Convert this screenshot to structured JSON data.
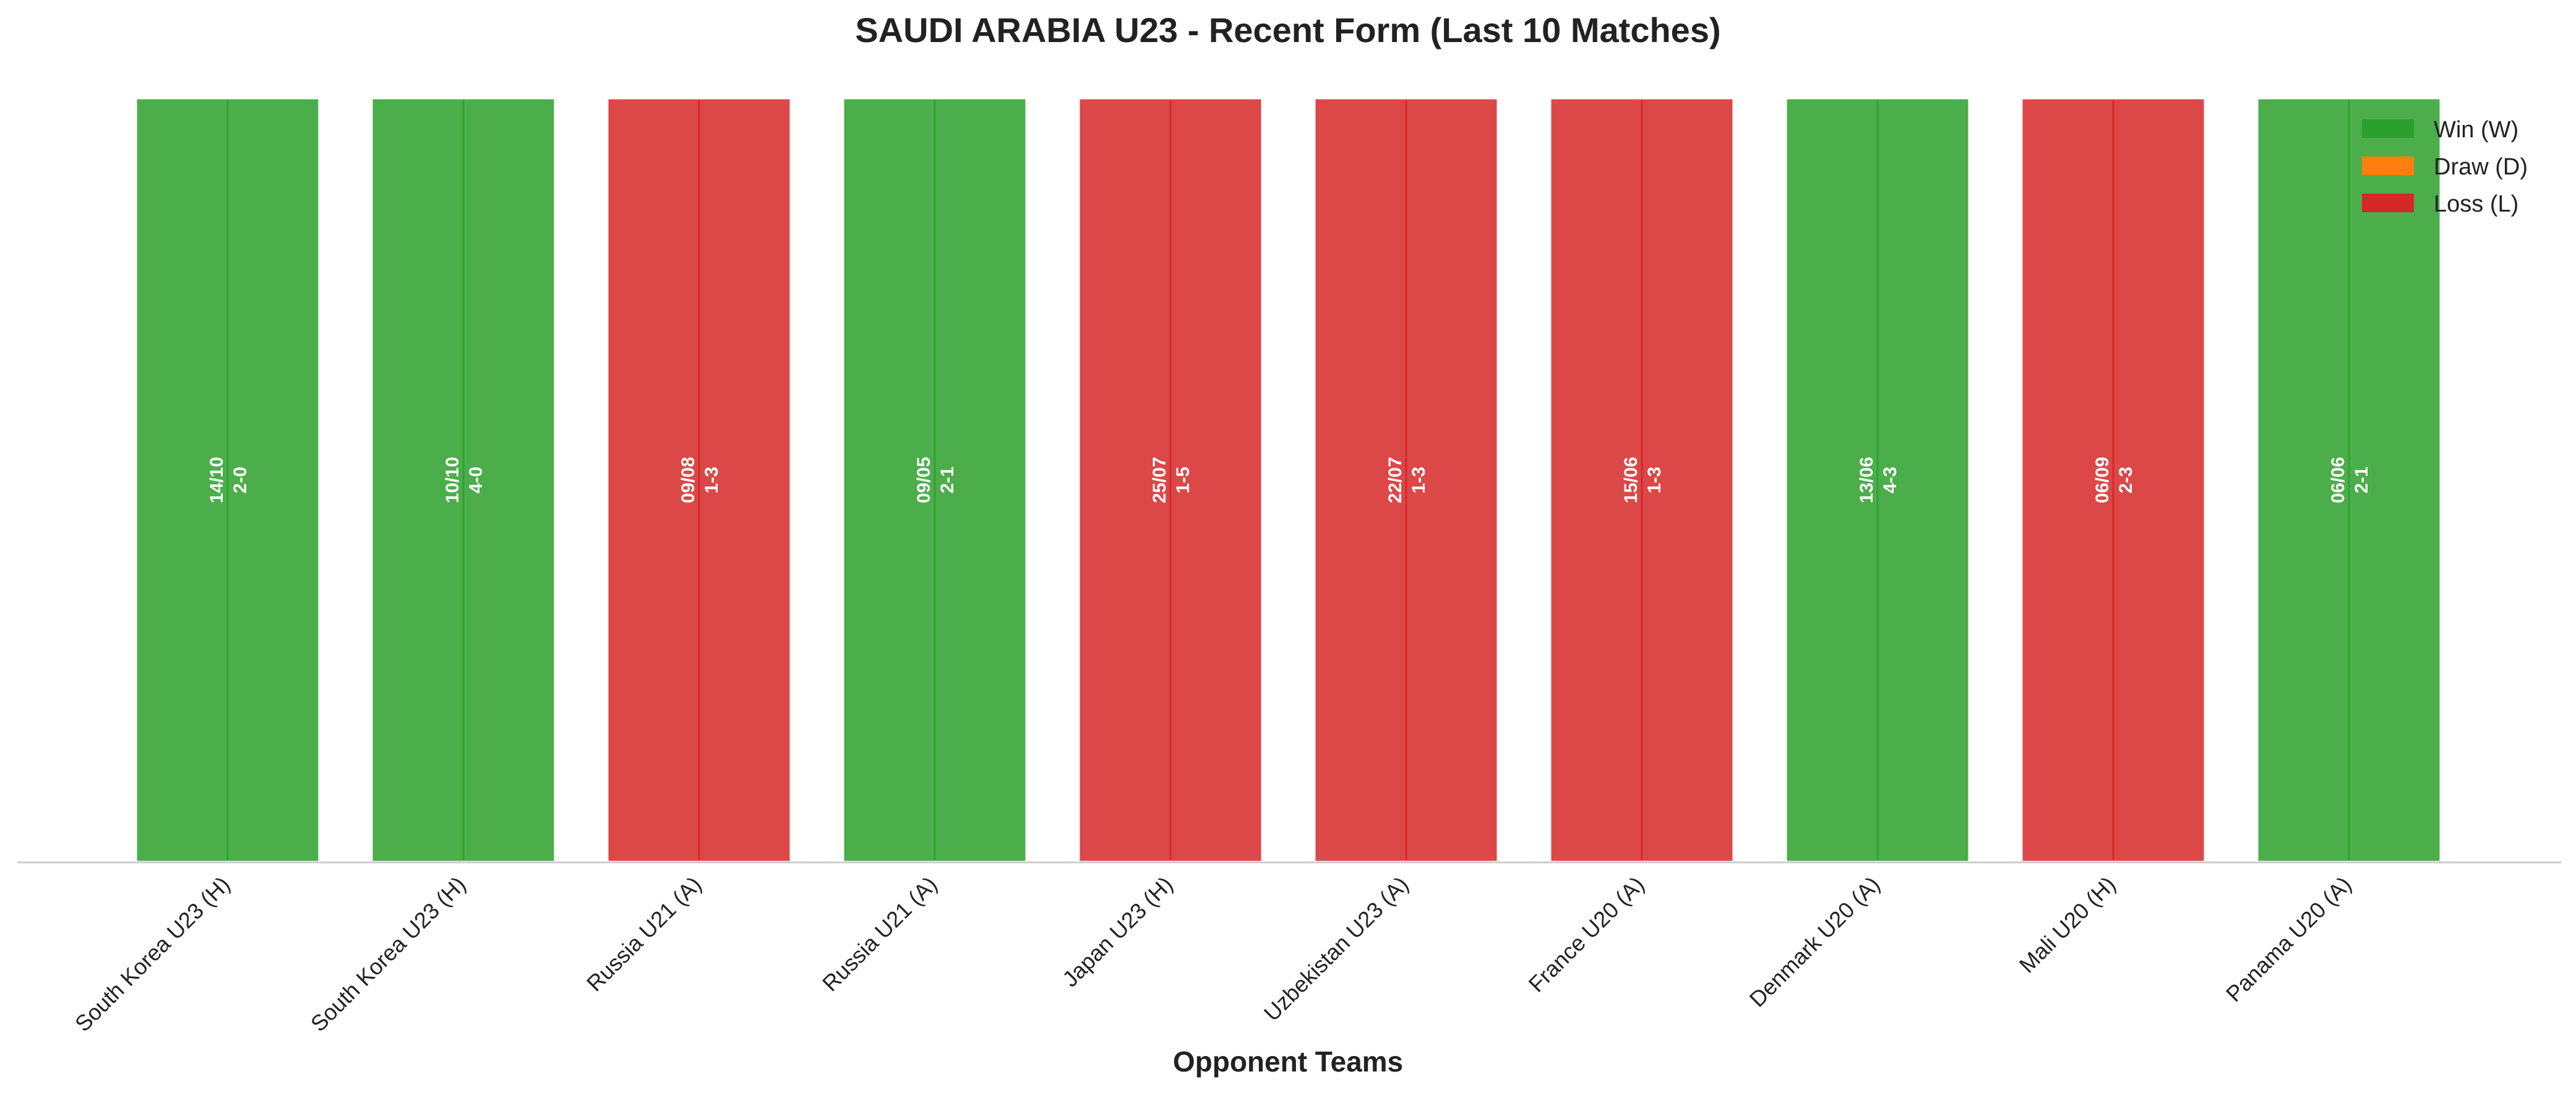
{
  "chart_data": {
    "type": "bar",
    "title": "SAUDI ARABIA U23 - Recent Form (Last 10 Matches)",
    "xlabel": "Opponent Teams",
    "ylabel": "",
    "ylim": [
      0,
      1
    ],
    "grid": false,
    "legend_position": "top-right",
    "legend": [
      {
        "key": "W",
        "label": "Win (W)",
        "color": "#2ca02c"
      },
      {
        "key": "D",
        "label": "Draw (D)",
        "color": "#ff7f0e"
      },
      {
        "key": "L",
        "label": "Loss (L)",
        "color": "#d62728"
      }
    ],
    "categories": [
      "South Korea U23 (H)",
      "South Korea U23 (H)",
      "Russia U21 (A)",
      "Russia U21 (A)",
      "Japan U23 (H)",
      "Uzbekistan U23 (A)",
      "France U20 (A)",
      "Denmark U20 (A)",
      "Mali U20 (H)",
      "Panama U20 (A)"
    ],
    "values": [
      1,
      1,
      1,
      1,
      1,
      1,
      1,
      1,
      1,
      1
    ],
    "results": [
      "W",
      "W",
      "L",
      "W",
      "L",
      "L",
      "L",
      "W",
      "L",
      "W"
    ],
    "dates": [
      "14/10",
      "10/10",
      "09/08",
      "09/05",
      "25/07",
      "22/07",
      "15/06",
      "13/06",
      "06/09",
      "06/06"
    ],
    "scores": [
      "2-0",
      "4-0",
      "1-3",
      "2-1",
      "1-5",
      "1-3",
      "1-3",
      "4-3",
      "2-3",
      "2-1"
    ]
  }
}
